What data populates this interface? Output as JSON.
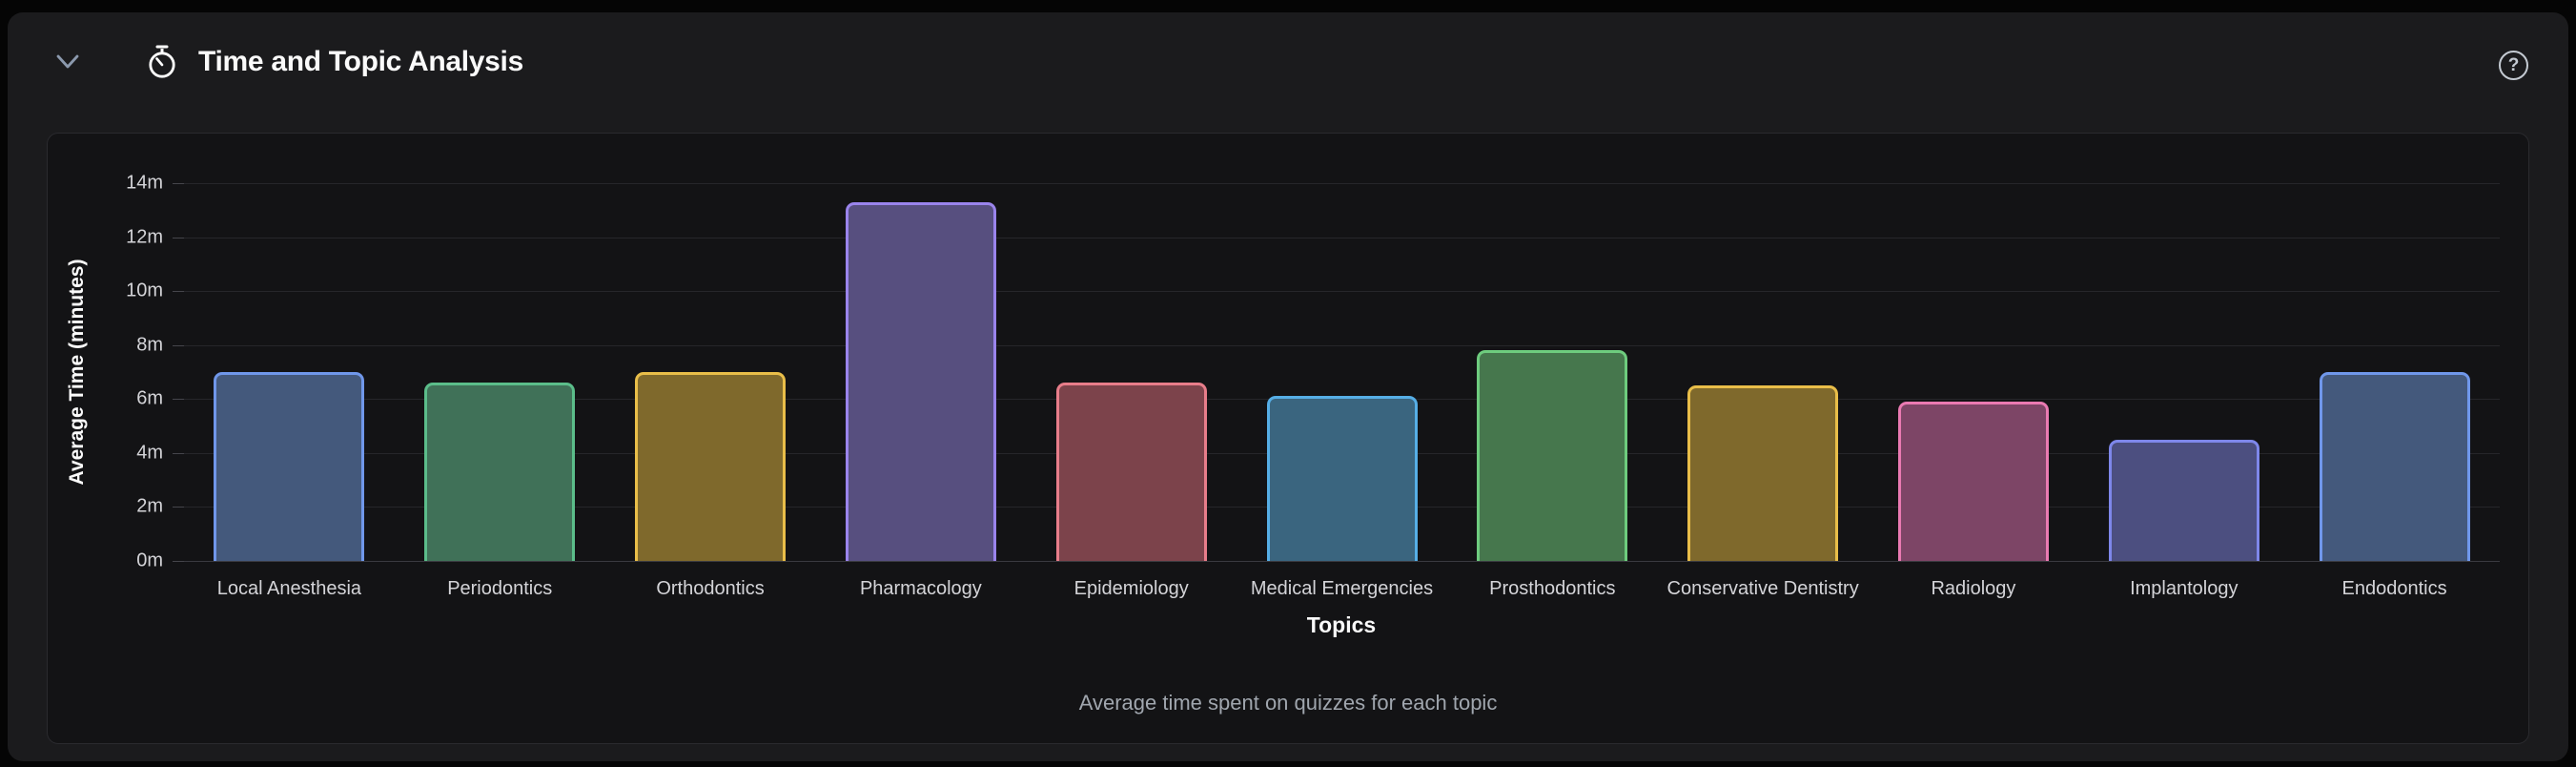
{
  "header": {
    "title": "Time and Topic Analysis",
    "collapse_icon": "chevron-down",
    "title_icon": "stopwatch",
    "help_icon": "question-mark-circle",
    "help_glyph": "?"
  },
  "chart_data": {
    "type": "bar",
    "title": "",
    "xlabel": "Topics",
    "ylabel": "Average Time (minutes)",
    "caption": "Average time spent on quizzes for each topic",
    "ylim": [
      0,
      14
    ],
    "ytick_labels": [
      "0m",
      "2m",
      "4m",
      "6m",
      "8m",
      "10m",
      "12m",
      "14m"
    ],
    "ytick_values": [
      0,
      2,
      4,
      6,
      8,
      10,
      12,
      14
    ],
    "grid": true,
    "legend": "none",
    "categories": [
      "Local Anesthesia",
      "Periodontics",
      "Orthodontics",
      "Pharmacology",
      "Epidemiology",
      "Medical Emergencies",
      "Prosthodontics",
      "Conservative Dentistry",
      "Radiology",
      "Implantology",
      "Endodontics"
    ],
    "values": [
      7.0,
      6.6,
      7.0,
      13.3,
      6.6,
      6.1,
      7.8,
      6.5,
      5.9,
      4.5,
      7.0
    ],
    "bar_fill": [
      "#44597c",
      "#407158",
      "#7f692c",
      "#574f7f",
      "#7c434b",
      "#3a657f",
      "#46774d",
      "#7f692c",
      "#7d4566",
      "#4c4f80",
      "#44597c"
    ],
    "bar_stroke": [
      "#7097ea",
      "#5bbd8a",
      "#e9be49",
      "#9a84ec",
      "#e87d8a",
      "#56aee6",
      "#6ecc7e",
      "#e9be49",
      "#ea7ab2",
      "#7e87ea",
      "#7097ea"
    ],
    "colors": {
      "grid": "#26262a",
      "axis": "#3a3a40",
      "tick_text": "#d4d4d8",
      "axis_title_text": "#fafafa",
      "caption_text": "#a0a6ae"
    }
  }
}
